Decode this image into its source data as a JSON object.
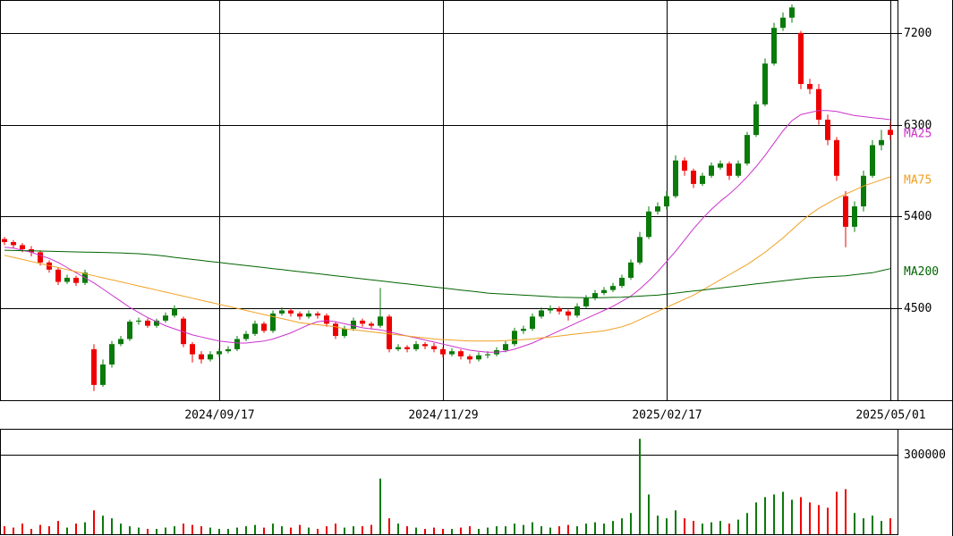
{
  "chart_data": {
    "type": "candlestick",
    "up_color": "#0a7a0a",
    "down_color": "#ee0000",
    "grid": true,
    "categories": [
      null,
      null,
      null,
      null,
      null,
      null,
      null,
      null,
      null,
      null,
      null,
      null,
      null,
      null,
      null,
      null,
      null,
      null,
      null,
      null,
      null,
      null,
      null,
      null,
      "2024/09/17",
      null,
      null,
      null,
      null,
      null,
      null,
      null,
      null,
      null,
      null,
      null,
      null,
      null,
      null,
      null,
      null,
      null,
      null,
      null,
      null,
      null,
      null,
      null,
      null,
      "2024/11/29",
      null,
      null,
      null,
      null,
      null,
      null,
      null,
      null,
      null,
      null,
      null,
      null,
      null,
      null,
      null,
      null,
      null,
      null,
      null,
      null,
      null,
      null,
      null,
      null,
      "2025/02/17",
      null,
      null,
      null,
      null,
      null,
      null,
      null,
      null,
      null,
      null,
      null,
      null,
      null,
      null,
      null,
      null,
      null,
      null,
      null,
      null,
      null,
      null,
      null,
      null,
      "2025/05/01"
    ],
    "open": [
      5180,
      5150,
      5120,
      5080,
      5050,
      4950,
      4880,
      4760,
      4800,
      4750,
      4100,
      3750,
      3950,
      4150,
      4200,
      4370,
      4380,
      4330,
      4380,
      4430,
      4400,
      4150,
      4050,
      4000,
      4050,
      4080,
      4100,
      4200,
      4250,
      4350,
      4280,
      4450,
      4480,
      4450,
      4420,
      4450,
      4430,
      4350,
      4230,
      4300,
      4380,
      4350,
      4330,
      4420,
      4100,
      4120,
      4100,
      4150,
      4130,
      4100,
      4050,
      4080,
      4030,
      4000,
      4040,
      4050,
      4090,
      4150,
      4280,
      4300,
      4420,
      4480,
      4500,
      4470,
      4430,
      4520,
      4600,
      4650,
      4680,
      4720,
      4800,
      4950,
      5200,
      5450,
      5500,
      5600,
      5950,
      5850,
      5720,
      5800,
      5880,
      5920,
      5800,
      5920,
      6200,
      6500,
      6900,
      7250,
      7350,
      7200,
      6700,
      6650,
      6350,
      6150,
      5600,
      5300,
      5500,
      5800,
      6100,
      6250
    ],
    "high": [
      5200,
      5170,
      5140,
      5110,
      5070,
      4970,
      4900,
      4830,
      4820,
      4880,
      4150,
      4000,
      4180,
      4230,
      4390,
      4410,
      4400,
      4400,
      4460,
      4530,
      4420,
      4170,
      4080,
      4080,
      4110,
      4130,
      4230,
      4280,
      4380,
      4370,
      4480,
      4510,
      4500,
      4470,
      4480,
      4470,
      4450,
      4370,
      4330,
      4410,
      4400,
      4370,
      4700,
      4440,
      4150,
      4140,
      4180,
      4170,
      4160,
      4120,
      4110,
      4100,
      4050,
      4070,
      4080,
      4120,
      4180,
      4310,
      4330,
      4450,
      4510,
      4530,
      4520,
      4490,
      4550,
      4630,
      4680,
      4710,
      4750,
      4830,
      4980,
      5250,
      5500,
      5540,
      5650,
      6000,
      5980,
      5870,
      5830,
      5930,
      5950,
      5940,
      5950,
      6230,
      6530,
      6950,
      7300,
      7400,
      7480,
      7220,
      6750,
      6700,
      6400,
      6180,
      5650,
      5550,
      5850,
      6150,
      6250,
      6330
    ],
    "low": [
      5120,
      5090,
      5050,
      5010,
      4920,
      4850,
      4730,
      4740,
      4720,
      4730,
      3690,
      3730,
      3920,
      4130,
      4180,
      4340,
      4310,
      4310,
      4360,
      4410,
      4120,
      3970,
      3960,
      3980,
      4020,
      4060,
      4080,
      4180,
      4230,
      4260,
      4260,
      4430,
      4420,
      4390,
      4400,
      4400,
      4320,
      4200,
      4210,
      4280,
      4320,
      4300,
      4310,
      4070,
      4080,
      4070,
      4080,
      4100,
      4070,
      4020,
      4030,
      4000,
      3960,
      3980,
      4010,
      4030,
      4070,
      4130,
      4250,
      4280,
      4400,
      4450,
      4440,
      4380,
      4410,
      4500,
      4580,
      4630,
      4660,
      4700,
      4780,
      4930,
      5180,
      5420,
      5470,
      5580,
      5800,
      5680,
      5700,
      5780,
      5860,
      5760,
      5780,
      5900,
      6180,
      6480,
      6880,
      7220,
      7300,
      6650,
      6600,
      6300,
      6100,
      5750,
      5100,
      5250,
      5450,
      5780,
      6050,
      6150
    ],
    "close": [
      5150,
      5120,
      5080,
      5050,
      4950,
      4880,
      4760,
      4800,
      4750,
      4850,
      3750,
      3950,
      4150,
      4200,
      4370,
      4380,
      4330,
      4380,
      4430,
      4500,
      4150,
      4050,
      4000,
      4050,
      4080,
      4100,
      4200,
      4250,
      4350,
      4280,
      4450,
      4480,
      4450,
      4420,
      4450,
      4430,
      4350,
      4230,
      4300,
      4380,
      4350,
      4330,
      4420,
      4100,
      4120,
      4100,
      4150,
      4130,
      4100,
      4050,
      4080,
      4030,
      4000,
      4040,
      4050,
      4090,
      4150,
      4280,
      4300,
      4420,
      4480,
      4500,
      4470,
      4430,
      4520,
      4600,
      4650,
      4680,
      4720,
      4800,
      4950,
      5200,
      5450,
      5500,
      5600,
      5950,
      5850,
      5720,
      5800,
      5900,
      5920,
      5800,
      5920,
      6200,
      6500,
      6900,
      7250,
      7350,
      7450,
      6700,
      6650,
      6350,
      6150,
      5800,
      5300,
      5500,
      5800,
      6100,
      6150,
      6200
    ],
    "series": [
      {
        "name": "MA25",
        "color": "#cc33cc",
        "values": [
          5100,
          5090,
          5070,
          5050,
          5020,
          4990,
          4950,
          4900,
          4850,
          4800,
          4750,
          4690,
          4630,
          4570,
          4510,
          4460,
          4410,
          4370,
          4330,
          4300,
          4270,
          4240,
          4220,
          4200,
          4180,
          4170,
          4160,
          4160,
          4170,
          4180,
          4200,
          4230,
          4260,
          4300,
          4340,
          4370,
          4380,
          4370,
          4350,
          4330,
          4310,
          4300,
          4290,
          4270,
          4250,
          4230,
          4210,
          4190,
          4170,
          4150,
          4130,
          4110,
          4090,
          4080,
          4070,
          4070,
          4080,
          4100,
          4130,
          4160,
          4200,
          4240,
          4280,
          4320,
          4360,
          4400,
          4440,
          4480,
          4520,
          4570,
          4620,
          4690,
          4770,
          4860,
          4960,
          5060,
          5170,
          5280,
          5380,
          5470,
          5550,
          5620,
          5700,
          5790,
          5890,
          6000,
          6120,
          6240,
          6340,
          6400,
          6420,
          6440,
          6440,
          6430,
          6410,
          6390,
          6380,
          6370,
          6360,
          6350
        ]
      },
      {
        "name": "MA75",
        "color": "#f0a020",
        "values": [
          5020,
          5000,
          4980,
          4960,
          4940,
          4920,
          4900,
          4880,
          4860,
          4840,
          4820,
          4800,
          4780,
          4760,
          4740,
          4720,
          4700,
          4680,
          4660,
          4640,
          4620,
          4600,
          4580,
          4560,
          4540,
          4520,
          4500,
          4480,
          4460,
          4440,
          4420,
          4400,
          4380,
          4360,
          4350,
          4340,
          4330,
          4320,
          4300,
          4290,
          4280,
          4270,
          4260,
          4250,
          4240,
          4230,
          4220,
          4210,
          4200,
          4195,
          4190,
          4185,
          4180,
          4180,
          4180,
          4180,
          4185,
          4190,
          4195,
          4200,
          4210,
          4220,
          4230,
          4240,
          4250,
          4260,
          4270,
          4280,
          4300,
          4320,
          4350,
          4390,
          4430,
          4470,
          4510,
          4550,
          4590,
          4630,
          4680,
          4730,
          4780,
          4830,
          4880,
          4930,
          4990,
          5050,
          5120,
          5190,
          5270,
          5350,
          5420,
          5480,
          5530,
          5580,
          5620,
          5660,
          5700,
          5730,
          5760,
          5790
        ]
      },
      {
        "name": "MA200",
        "color": "#006400",
        "values": [
          5070,
          5068,
          5066,
          5064,
          5062,
          5060,
          5058,
          5056,
          5054,
          5052,
          5050,
          5048,
          5046,
          5044,
          5040,
          5036,
          5030,
          5022,
          5012,
          5000,
          4990,
          4980,
          4970,
          4960,
          4950,
          4940,
          4930,
          4920,
          4910,
          4900,
          4890,
          4880,
          4870,
          4860,
          4850,
          4840,
          4830,
          4820,
          4810,
          4800,
          4790,
          4780,
          4770,
          4760,
          4750,
          4740,
          4730,
          4720,
          4710,
          4700,
          4690,
          4680,
          4670,
          4660,
          4650,
          4645,
          4640,
          4635,
          4630,
          4625,
          4620,
          4615,
          4610,
          4608,
          4606,
          4605,
          4605,
          4606,
          4608,
          4610,
          4615,
          4620,
          4625,
          4630,
          4640,
          4650,
          4660,
          4670,
          4680,
          4690,
          4700,
          4710,
          4720,
          4730,
          4740,
          4750,
          4760,
          4770,
          4780,
          4790,
          4800,
          4805,
          4810,
          4815,
          4820,
          4830,
          4840,
          4850,
          4870,
          4890
        ]
      }
    ],
    "ylim": [
      3600,
      7523
    ],
    "yticks": [
      4500,
      5400,
      6300,
      7200
    ],
    "volume": {
      "values": [
        30000,
        25000,
        40000,
        20000,
        35000,
        30000,
        50000,
        25000,
        40000,
        45000,
        90000,
        70000,
        60000,
        40000,
        30000,
        25000,
        20000,
        20000,
        25000,
        30000,
        40000,
        35000,
        30000,
        25000,
        20000,
        20000,
        25000,
        30000,
        35000,
        25000,
        40000,
        30000,
        25000,
        35000,
        25000,
        20000,
        30000,
        40000,
        25000,
        30000,
        30000,
        35000,
        210000,
        60000,
        40000,
        30000,
        25000,
        20000,
        25000,
        20000,
        20000,
        25000,
        30000,
        20000,
        25000,
        30000,
        30000,
        40000,
        35000,
        45000,
        30000,
        25000,
        30000,
        35000,
        30000,
        40000,
        45000,
        40000,
        50000,
        60000,
        80000,
        360000,
        150000,
        70000,
        60000,
        90000,
        60000,
        50000,
        40000,
        45000,
        50000,
        40000,
        55000,
        80000,
        120000,
        140000,
        150000,
        160000,
        130000,
        140000,
        120000,
        110000,
        100000,
        160000,
        170000,
        80000,
        60000,
        70000,
        50000,
        60000
      ],
      "ylim": [
        0,
        397753
      ],
      "yticks": [
        300000
      ]
    }
  }
}
